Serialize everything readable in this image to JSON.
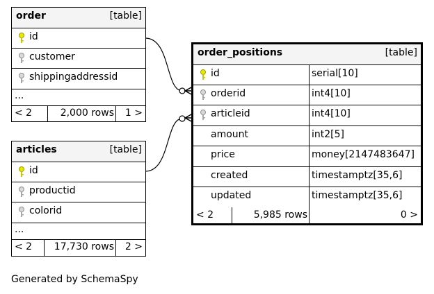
{
  "tables": {
    "order": {
      "name": "order",
      "kind": "[table]",
      "columns": [
        "id",
        "customer",
        "shippingaddressid"
      ],
      "ellipsis": "...",
      "footer": {
        "prev": "< 2",
        "rows": "2,000 rows",
        "next": "1 >"
      }
    },
    "articles": {
      "name": "articles",
      "kind": "[table]",
      "columns": [
        "id",
        "productid",
        "colorid"
      ],
      "ellipsis": "...",
      "footer": {
        "prev": "< 2",
        "rows": "17,730 rows",
        "next": "2 >"
      }
    },
    "order_positions": {
      "name": "order_positions",
      "kind": "[table]",
      "columns": [
        {
          "name": "id",
          "type": "serial[10]"
        },
        {
          "name": "orderid",
          "type": "int4[10]"
        },
        {
          "name": "articleid",
          "type": "int4[10]"
        },
        {
          "name": "amount",
          "type": "int2[5]"
        },
        {
          "name": "price",
          "type": "money[2147483647]"
        },
        {
          "name": "created",
          "type": "timestamptz[35,6]"
        },
        {
          "name": "updated",
          "type": "timestamptz[35,6]"
        }
      ],
      "footer": {
        "prev": "< 2",
        "rows": "5,985 rows",
        "next": "0 >"
      }
    }
  },
  "colors": {
    "primary_key": "#e8e800",
    "foreign_key": "#b0b0b0",
    "header_bg": "#f4f4f4"
  },
  "credit": "Generated by SchemaSpy"
}
